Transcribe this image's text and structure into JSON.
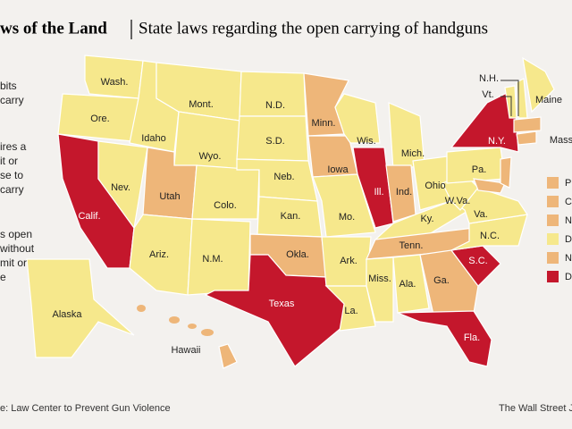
{
  "header": {
    "title": "ws of the Land",
    "subtitle": "State laws regarding the open carrying of handguns"
  },
  "legend_left": [
    "bits",
    "carry",
    "ires a",
    "it or",
    "se to",
    "carry",
    "s open",
    "without",
    "mit or",
    "e"
  ],
  "legend_right": [
    {
      "label": "P",
      "color": "#eeb679"
    },
    {
      "label": "C",
      "color": "#eeb679"
    },
    {
      "label": "N",
      "color": "#eeb679"
    },
    {
      "label": "D",
      "color": "#f6e88c"
    },
    {
      "label": "N",
      "color": "#eeb679"
    },
    {
      "label": "D",
      "color": "#c4172c"
    }
  ],
  "states": [
    {
      "label": "Wash.",
      "color": "#f6e88c"
    },
    {
      "label": "Ore.",
      "color": "#f6e88c"
    },
    {
      "label": "Calif.",
      "color": "#c4172c"
    },
    {
      "label": "Nev.",
      "color": "#f6e88c"
    },
    {
      "label": "Idaho",
      "color": "#f6e88c"
    },
    {
      "label": "Mont.",
      "color": "#f6e88c"
    },
    {
      "label": "Wyo.",
      "color": "#f6e88c"
    },
    {
      "label": "Utah",
      "color": "#eeb679"
    },
    {
      "label": "Ariz.",
      "color": "#f6e88c"
    },
    {
      "label": "Colo.",
      "color": "#f6e88c"
    },
    {
      "label": "N.M.",
      "color": "#f6e88c"
    },
    {
      "label": "N.D.",
      "color": "#f6e88c"
    },
    {
      "label": "S.D.",
      "color": "#f6e88c"
    },
    {
      "label": "Neb.",
      "color": "#f6e88c"
    },
    {
      "label": "Kan.",
      "color": "#f6e88c"
    },
    {
      "label": "Okla.",
      "color": "#eeb679"
    },
    {
      "label": "Texas",
      "color": "#c4172c"
    },
    {
      "label": "Minn.",
      "color": "#eeb679"
    },
    {
      "label": "Iowa",
      "color": "#eeb679"
    },
    {
      "label": "Mo.",
      "color": "#f6e88c"
    },
    {
      "label": "Ark.",
      "color": "#f6e88c"
    },
    {
      "label": "La.",
      "color": "#f6e88c"
    },
    {
      "label": "Wis.",
      "color": "#f6e88c"
    },
    {
      "label": "Ill.",
      "color": "#c4172c"
    },
    {
      "label": "Mich.",
      "color": "#f6e88c"
    },
    {
      "label": "Ind.",
      "color": "#eeb679"
    },
    {
      "label": "Ohio",
      "color": "#f6e88c"
    },
    {
      "label": "Ky.",
      "color": "#f6e88c"
    },
    {
      "label": "Tenn.",
      "color": "#eeb679"
    },
    {
      "label": "Miss.",
      "color": "#f6e88c"
    },
    {
      "label": "Ala.",
      "color": "#f6e88c"
    },
    {
      "label": "Ga.",
      "color": "#eeb679"
    },
    {
      "label": "Fla.",
      "color": "#c4172c"
    },
    {
      "label": "S.C.",
      "color": "#c4172c"
    },
    {
      "label": "N.C.",
      "color": "#f6e88c"
    },
    {
      "label": "Va.",
      "color": "#f6e88c"
    },
    {
      "label": "W.Va.",
      "color": "#f6e88c"
    },
    {
      "label": "Pa.",
      "color": "#f6e88c"
    },
    {
      "label": "N.Y.",
      "color": "#c4172c"
    },
    {
      "label": "Vt.",
      "color": "#f6e88c"
    },
    {
      "label": "N.H.",
      "color": "#f6e88c"
    },
    {
      "label": "Maine",
      "color": "#f6e88c"
    },
    {
      "label": "Mass",
      "color": "#eeb679"
    },
    {
      "label": "Alaska",
      "color": "#f6e88c"
    },
    {
      "label": "Hawaii",
      "color": "#eeb679"
    }
  ],
  "footer": {
    "source": "e: Law Center to Prevent Gun Violence",
    "credit": "The Wall Street J"
  }
}
